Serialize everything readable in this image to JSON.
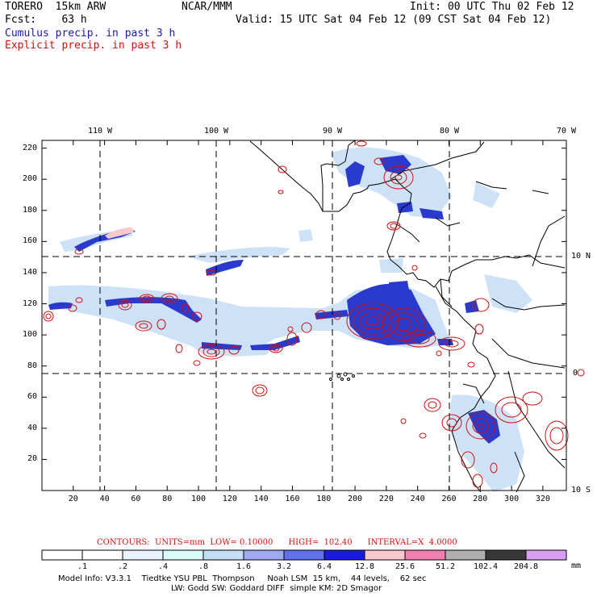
{
  "header": {
    "model": "TORERO  15km ARW",
    "org": "NCAR/MMM",
    "init": "Init: 00 UTC Thu 02 Feb 12",
    "fcst": "Fcst:    63 h",
    "valid": "Valid: 15 UTC Sat 04 Feb 12 (09 CST Sat 04 Feb 12)",
    "cumulus_label": "Cumulus precip. in past 3 h",
    "explicit_label": "Explicit precip. in past 3 h"
  },
  "map": {
    "lon_labels": [
      "110 W",
      "100 W",
      "90 W",
      "80 W",
      "70 W"
    ],
    "lat_labels": [
      "10 N",
      "0",
      "10 S"
    ],
    "x_ticks": [
      "20",
      "40",
      "60",
      "80",
      "100",
      "120",
      "140",
      "160",
      "180",
      "200",
      "220",
      "240",
      "260",
      "280",
      "300",
      "320"
    ],
    "y_ticks": [
      "20",
      "40",
      "60",
      "80",
      "100",
      "120",
      "140",
      "160",
      "180",
      "200",
      "220"
    ],
    "x_range": [
      0,
      335
    ],
    "y_range": [
      0,
      225
    ]
  },
  "contours": {
    "text": "CONTOURS:  UNITS=mm  LOW= 0.10000      HIGH=  102.40      INTERVAL=X  4.0000"
  },
  "colorbar": {
    "unit": "mm",
    "labels": [
      ".1",
      ".2",
      ".4",
      ".8",
      "1.6",
      "3.2",
      "6.4",
      "12.8",
      "25.6",
      "51.2",
      "102.4",
      "204.8"
    ],
    "colors": [
      "#ffffff",
      "#ffffff",
      "#eaf4ff",
      "#d8fafa",
      "#c6ddf6",
      "#9eaaf0",
      "#6070e8",
      "#1a1ae0",
      "#f8c8cc",
      "#f080b0",
      "#b0b0b0",
      "#383838",
      "#d8a0f0"
    ]
  },
  "footer": {
    "line1": "Model Info: V3.3.1    Tiedtke YSU PBL  Thompson     Noah LSM  15 km,    44 levels,    62 sec",
    "line2": "LW: Godd SW: Goddard DIFF  simple KM: 2D Smagor"
  },
  "colors": {
    "cumulus": "#2a3acc",
    "explicit": "#d01010",
    "light_precip": "#c6ddf6"
  }
}
